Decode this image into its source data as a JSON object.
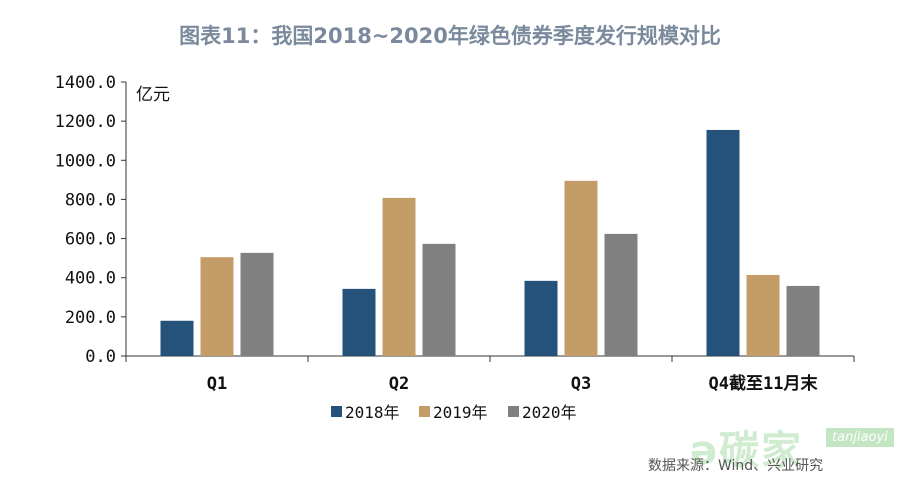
{
  "chart_data": {
    "type": "bar",
    "title": "图表11：我国2018~2020年绿色债券季度发行规模对比",
    "ylabel": "亿元",
    "xlabel": "",
    "ylim": [
      0,
      1400
    ],
    "yticks": [
      "0.0",
      "200.0",
      "400.0",
      "600.0",
      "800.0",
      "1000.0",
      "1200.0",
      "1400.0"
    ],
    "ytick_values": [
      0,
      200,
      400,
      600,
      800,
      1000,
      1200,
      1400
    ],
    "categories": [
      "Q1",
      "Q2",
      "Q3",
      "Q4截至11月末"
    ],
    "series": [
      {
        "name": "2018年",
        "color": "#25527a",
        "values": [
          180,
          343,
          384,
          1155
        ]
      },
      {
        "name": "2019年",
        "color": "#c49c68",
        "values": [
          505,
          808,
          895,
          414
        ]
      },
      {
        "name": "2020年",
        "color": "#808080",
        "values": [
          527,
          573,
          624,
          358
        ]
      }
    ],
    "legend_position": "bottom",
    "grid": false
  },
  "source": "数据来源：Wind、兴业研究",
  "watermark": {
    "logo_text": "碳家",
    "site": "tanjiaoyi.com"
  }
}
